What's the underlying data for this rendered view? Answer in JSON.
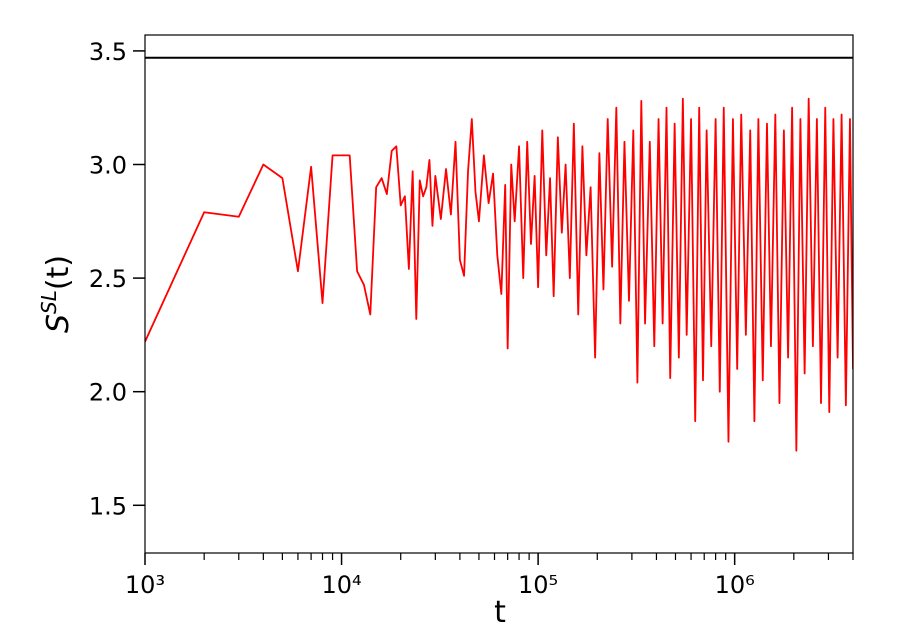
{
  "chart_data": {
    "type": "line",
    "xlabel": "t",
    "ylabel": {
      "base": "S",
      "sup": "SL",
      "rest": "(t)"
    },
    "xscale": "log",
    "xlim": [
      1000,
      4000000
    ],
    "ylim": [
      1.29,
      3.57
    ],
    "xticks": [
      {
        "value": 1000,
        "label": "10³"
      },
      {
        "value": 10000,
        "label": "10⁴"
      },
      {
        "value": 100000,
        "label": "10⁵"
      },
      {
        "value": 1000000,
        "label": "10⁶"
      }
    ],
    "xticks_minor": [
      2000,
      3000,
      4000,
      5000,
      6000,
      7000,
      8000,
      9000,
      20000,
      30000,
      40000,
      50000,
      60000,
      70000,
      80000,
      90000,
      200000,
      300000,
      400000,
      500000,
      600000,
      700000,
      800000,
      900000,
      2000000,
      3000000,
      4000000
    ],
    "yticks": [
      1.5,
      {
        "value": 2,
        "label": "2.0"
      },
      2.5,
      {
        "value": 3,
        "label": "3.0"
      },
      3.5
    ],
    "hline": {
      "value": 3.47,
      "color": "#000000"
    },
    "series": [
      {
        "color": "#ff0000",
        "x": [
          1000,
          2000,
          3000,
          4000,
          5000,
          6000,
          7000,
          8000,
          9000,
          11000,
          12000,
          13000,
          14000,
          15000,
          16000,
          17000,
          18000,
          19000,
          20000,
          21000,
          22000,
          23000,
          24000,
          25000,
          26000,
          27000,
          28000,
          29000,
          30000,
          32000,
          34000,
          36000,
          38000,
          40000,
          42000,
          44000,
          46000,
          48000,
          50000,
          53000,
          56000,
          59000,
          62000,
          65000,
          68000,
          70000,
          73000,
          76000,
          80000,
          84000,
          88000,
          92000,
          96000,
          100000,
          105000,
          110000,
          115000,
          120000,
          126000,
          132000,
          138000,
          145000,
          152000,
          160000,
          168000,
          176000,
          185000,
          195000,
          205000,
          215000,
          226000,
          238000,
          250000,
          262000,
          275000,
          290000,
          305000,
          320000,
          335000,
          350000,
          370000,
          390000,
          410000,
          430000,
          450000,
          470000,
          495000,
          520000,
          545000,
          570000,
          600000,
          630000,
          660000,
          690000,
          720000,
          760000,
          800000,
          840000,
          880000,
          930000,
          980000,
          1030000,
          1080000,
          1140000,
          1200000,
          1260000,
          1320000,
          1390000,
          1460000,
          1530000,
          1610000,
          1690000,
          1780000,
          1870000,
          1960000,
          2060000,
          2160000,
          2270000,
          2380000,
          2500000,
          2620000,
          2750000,
          2890000,
          3030000,
          3180000,
          3340000,
          3500000,
          3680000,
          3860000,
          4000000
        ],
        "values": [
          2.22,
          2.79,
          2.77,
          3.0,
          2.94,
          2.53,
          2.99,
          2.39,
          3.04,
          3.04,
          2.53,
          2.47,
          2.34,
          2.9,
          2.94,
          2.87,
          3.06,
          3.08,
          2.82,
          2.86,
          2.54,
          2.97,
          2.32,
          2.93,
          2.86,
          2.9,
          3.02,
          2.73,
          2.95,
          2.76,
          2.98,
          2.78,
          3.1,
          2.58,
          2.51,
          2.97,
          3.2,
          2.88,
          2.75,
          3.04,
          2.83,
          2.96,
          2.6,
          2.43,
          2.91,
          2.19,
          3.0,
          2.75,
          3.08,
          2.5,
          3.1,
          2.65,
          2.95,
          2.46,
          3.15,
          2.6,
          2.94,
          2.42,
          3.12,
          2.7,
          3.0,
          2.5,
          3.18,
          2.34,
          3.08,
          2.6,
          2.9,
          2.15,
          3.05,
          2.45,
          3.2,
          2.55,
          3.25,
          2.3,
          3.1,
          2.4,
          3.15,
          2.04,
          3.28,
          2.3,
          3.1,
          2.2,
          3.2,
          2.3,
          3.25,
          2.06,
          3.18,
          2.15,
          3.29,
          2.25,
          3.2,
          1.87,
          3.25,
          2.05,
          3.15,
          2.2,
          3.2,
          2.0,
          3.25,
          1.78,
          3.2,
          2.1,
          3.22,
          2.25,
          3.15,
          1.87,
          3.2,
          2.05,
          3.18,
          2.2,
          3.22,
          1.95,
          3.15,
          2.15,
          3.25,
          1.74,
          3.2,
          2.08,
          3.29,
          2.2,
          3.2,
          1.95,
          3.25,
          1.91,
          3.2,
          2.15,
          3.22,
          1.94,
          3.2,
          2.1
        ]
      }
    ]
  }
}
